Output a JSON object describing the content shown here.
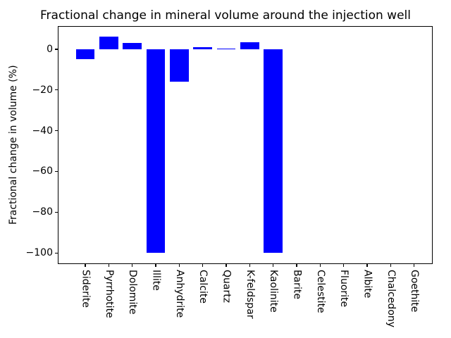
{
  "chart_data": {
    "type": "bar",
    "title": "Fractional change in mineral volume around the injection well",
    "xlabel": "",
    "ylabel": "Fractional change in volume (%)",
    "categories": [
      "Siderite",
      "Pyrrhotite",
      "Dolomite",
      "Illite",
      "Anhydrite",
      "Calcite",
      "Quartz",
      "K-feldspar",
      "Kaolinite",
      "Barite",
      "Celestite",
      "Fluorite",
      "Albite",
      "Chalcedony",
      "Goethite"
    ],
    "values": [
      -4.8,
      6.1,
      3.1,
      -100,
      -15.9,
      1.1,
      0.5,
      3.3,
      -100,
      0,
      0,
      0,
      0,
      0,
      0
    ],
    "ylim": [
      -105.3,
      11.4
    ],
    "yticks": [
      0,
      -20,
      -40,
      -60,
      -80,
      -100
    ],
    "x_tick_rotation_deg": 90,
    "grid": false,
    "legend": null,
    "bar_color": "#0000ff",
    "background_color": "#ffffff",
    "spine_color": "#000000",
    "text_color": "#000000"
  }
}
